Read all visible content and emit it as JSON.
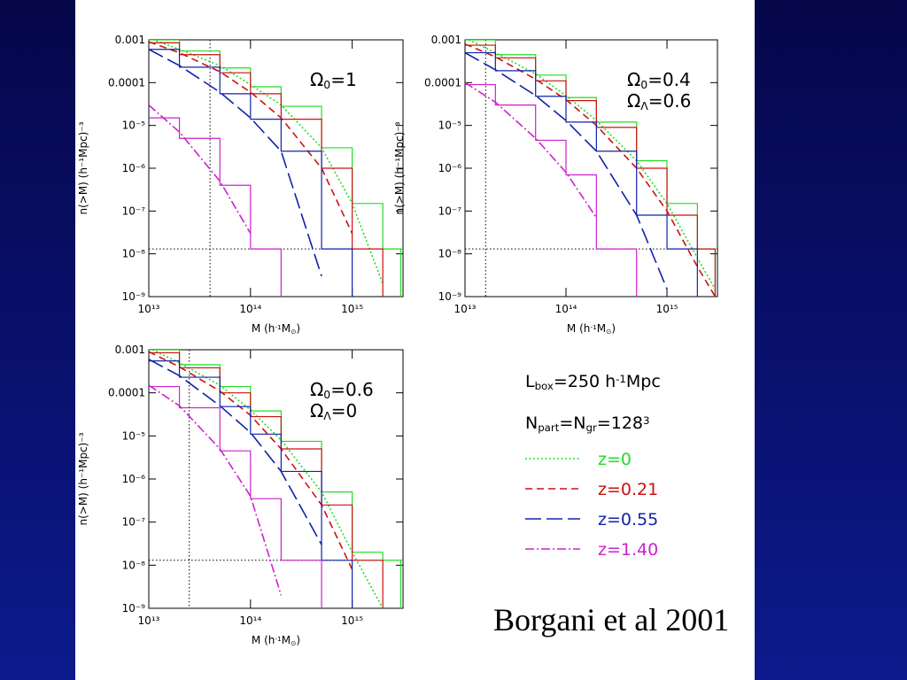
{
  "chart_data": [
    {
      "type": "line",
      "xscale": "log",
      "yscale": "log",
      "ylabel": "n(>M) (h⁻¹Mpc)⁻³",
      "xlabel": [
        {
          "text": "M (h"
        },
        {
          "text": "-1",
          "pos": "sup"
        },
        {
          "text": "M"
        },
        {
          "text": "⊙",
          "pos": "sub"
        },
        {
          "text": ")"
        }
      ],
      "annotations": [
        [
          {
            "text": "Ω"
          },
          {
            "text": "0",
            "pos": "sub"
          },
          {
            "text": "=1"
          }
        ]
      ],
      "xlim": [
        10000000000000.0,
        3160000000000000.0
      ],
      "ylim": [
        1e-09,
        0.001
      ],
      "xticks": [
        {
          "value": 10000000000000.0,
          "label": "10¹³"
        },
        {
          "value": 100000000000000.0,
          "label": "10¹⁴"
        },
        {
          "value": 1000000000000000.0,
          "label": "10¹⁵"
        }
      ],
      "yticks": [
        0.001,
        0.0001,
        {
          "value": 1e-05,
          "label": "10⁻⁵"
        },
        {
          "value": 1e-06,
          "label": "10⁻⁶"
        },
        {
          "value": 1e-07,
          "label": "10⁻⁷"
        },
        {
          "value": 1e-08,
          "label": "10⁻⁸"
        },
        {
          "value": 1e-09,
          "label": "10⁻⁹"
        }
      ],
      "hline": 1.3e-08,
      "vline": 40000000000000.0,
      "x": [
        10000000000000.0,
        20000000000000.0,
        50000000000000.0,
        100000000000000.0,
        200000000000000.0,
        500000000000000.0,
        1000000000000000.0,
        2000000000000000.0,
        3000000000000000.0
      ],
      "series": [
        {
          "values": [
            0.0011,
            0.0006,
            0.00025,
            9e-05,
            3e-05,
            3e-06,
            1.5e-07,
            2e-09,
            null
          ],
          "hist_values": [
            0.001,
            0.00055,
            0.00022,
            8e-05,
            2.8e-05,
            3e-06,
            1.5e-07,
            1.3e-08,
            null
          ]
        },
        {
          "values": [
            0.0009,
            0.0005,
            0.00018,
            6e-05,
            1.5e-05,
            1e-06,
            3e-08,
            null,
            null
          ],
          "hist_values": [
            0.00085,
            0.00045,
            0.00017,
            5.5e-05,
            1.4e-05,
            1e-06,
            1.3e-08,
            null,
            null
          ]
        },
        {
          "values": [
            0.0006,
            0.00025,
            6e-05,
            1.5e-05,
            2.5e-06,
            3e-09,
            null,
            null,
            null
          ],
          "hist_values": [
            0.0006,
            0.00023,
            5.5e-05,
            1.4e-05,
            2.5e-06,
            1.3e-08,
            null,
            null,
            null
          ]
        },
        {
          "values": [
            3e-05,
            7e-06,
            5e-07,
            3e-08,
            null,
            null,
            null,
            null,
            null
          ],
          "hist_values": [
            1.5e-05,
            5e-06,
            4e-07,
            1.3e-08,
            null,
            null,
            null,
            null,
            null
          ]
        }
      ]
    },
    {
      "type": "line",
      "xscale": "log",
      "yscale": "log",
      "ylabel": "n(>M) (h⁻¹Mpc)⁻³",
      "xlabel": [
        {
          "text": "M (h"
        },
        {
          "text": "-1",
          "pos": "sup"
        },
        {
          "text": "M"
        },
        {
          "text": "⊙",
          "pos": "sub"
        },
        {
          "text": ")"
        }
      ],
      "annotations": [
        [
          {
            "text": "Ω"
          },
          {
            "text": "0",
            "pos": "sub"
          },
          {
            "text": "=0.4"
          }
        ],
        [
          {
            "text": "Ω"
          },
          {
            "text": "Λ",
            "pos": "sub"
          },
          {
            "text": "=0.6"
          }
        ]
      ],
      "xlim": [
        10000000000000.0,
        3160000000000000.0
      ],
      "ylim": [
        1e-09,
        0.001
      ],
      "xticks": [
        {
          "value": 10000000000000.0,
          "label": "10¹³"
        },
        {
          "value": 100000000000000.0,
          "label": "10¹⁴"
        },
        {
          "value": 1000000000000000.0,
          "label": "10¹⁵"
        }
      ],
      "yticks": [
        0.001,
        0.0001,
        {
          "value": 1e-05,
          "label": "10⁻⁵"
        },
        {
          "value": 1e-06,
          "label": "10⁻⁶"
        },
        {
          "value": 1e-07,
          "label": "10⁻⁷"
        },
        {
          "value": 1e-08,
          "label": "10⁻⁸"
        },
        {
          "value": 1e-09,
          "label": "10⁻⁹"
        }
      ],
      "hline": 1.3e-08,
      "vline": 16000000000000.0,
      "x": [
        10000000000000.0,
        20000000000000.0,
        50000000000000.0,
        100000000000000.0,
        200000000000000.0,
        500000000000000.0,
        1000000000000000.0,
        2000000000000000.0,
        3000000000000000.0
      ],
      "series": [
        {
          "values": [
            0.0011,
            0.0005,
            0.00016,
            5e-05,
            1.3e-05,
            1.5e-06,
            1.5e-07,
            8e-09,
            1.5e-09
          ],
          "hist_values": [
            0.001,
            0.00045,
            0.00015,
            4.5e-05,
            1.2e-05,
            1.5e-06,
            1.5e-07,
            1.3e-08,
            null
          ]
        },
        {
          "values": [
            0.0008,
            0.0004,
            0.00012,
            4e-05,
            1e-05,
            1e-06,
            1e-07,
            5e-09,
            1e-09
          ],
          "hist_values": [
            0.00075,
            0.00038,
            0.00011,
            3.8e-05,
            9e-06,
            1e-06,
            8e-08,
            1.3e-08,
            null
          ]
        },
        {
          "values": [
            0.0005,
            0.0002,
            5e-05,
            1.3e-05,
            2.5e-06,
            8e-08,
            1.5e-09,
            null,
            null
          ],
          "hist_values": [
            0.0005,
            0.00019,
            4.8e-05,
            1.2e-05,
            2.5e-06,
            8e-08,
            1.3e-08,
            null,
            null
          ]
        },
        {
          "values": [
            0.0001,
            3.5e-05,
            5e-06,
            8e-07,
            7e-08,
            null,
            null,
            null,
            null
          ],
          "hist_values": [
            9e-05,
            3e-05,
            4.5e-06,
            7e-07,
            1.3e-08,
            null,
            null,
            null,
            null
          ]
        }
      ]
    },
    {
      "type": "line",
      "xscale": "log",
      "yscale": "log",
      "ylabel": "n(>M) (h⁻¹Mpc)⁻³",
      "xlabel": [
        {
          "text": "M (h"
        },
        {
          "text": "-1",
          "pos": "sup"
        },
        {
          "text": "M"
        },
        {
          "text": "⊙",
          "pos": "sub"
        },
        {
          "text": ")"
        }
      ],
      "annotations": [
        [
          {
            "text": "Ω"
          },
          {
            "text": "0",
            "pos": "sub"
          },
          {
            "text": "=0.6"
          }
        ],
        [
          {
            "text": "Ω"
          },
          {
            "text": "Λ",
            "pos": "sub"
          },
          {
            "text": "=0"
          }
        ]
      ],
      "xlim": [
        10000000000000.0,
        3160000000000000.0
      ],
      "ylim": [
        1e-09,
        0.001
      ],
      "xticks": [
        {
          "value": 10000000000000.0,
          "label": "10¹³"
        },
        {
          "value": 100000000000000.0,
          "label": "10¹⁴"
        },
        {
          "value": 1000000000000000.0,
          "label": "10¹⁵"
        }
      ],
      "yticks": [
        0.001,
        0.0001,
        {
          "value": 1e-05,
          "label": "10⁻⁵"
        },
        {
          "value": 1e-06,
          "label": "10⁻⁶"
        },
        {
          "value": 1e-07,
          "label": "10⁻⁷"
        },
        {
          "value": 1e-08,
          "label": "10⁻⁸"
        },
        {
          "value": 1e-09,
          "label": "10⁻⁹"
        }
      ],
      "hline": 1.3e-08,
      "vline": 25000000000000.0,
      "x": [
        10000000000000.0,
        20000000000000.0,
        50000000000000.0,
        100000000000000.0,
        200000000000000.0,
        500000000000000.0,
        1000000000000000.0,
        2000000000000000.0,
        3000000000000000.0
      ],
      "series": [
        {
          "values": [
            0.0011,
            0.0005,
            0.00015,
            4e-05,
            8e-06,
            5e-07,
            2e-08,
            1e-09,
            null
          ],
          "hist_values": [
            0.001,
            0.00045,
            0.00014,
            3.8e-05,
            7.5e-06,
            5e-07,
            2e-08,
            1.3e-08,
            null
          ]
        },
        {
          "values": [
            0.0009,
            0.0004,
            0.00011,
            3e-05,
            5e-06,
            2.5e-07,
            8e-09,
            null,
            null
          ],
          "hist_values": [
            0.00085,
            0.00038,
            0.0001,
            2.8e-05,
            5e-06,
            2.5e-07,
            1.3e-08,
            null,
            null
          ]
        },
        {
          "values": [
            0.0006,
            0.00025,
            5e-05,
            1.2e-05,
            1.5e-06,
            3e-08,
            null,
            null,
            null
          ],
          "hist_values": [
            0.00055,
            0.00023,
            4.8e-05,
            1.1e-05,
            1.5e-06,
            1.3e-08,
            null,
            null,
            null
          ]
        },
        {
          "values": [
            0.00015,
            5e-05,
            5e-06,
            4e-07,
            2e-09,
            null,
            null,
            null,
            null
          ],
          "hist_values": [
            0.00014,
            4.5e-05,
            4.5e-06,
            3.5e-07,
            1.3e-08,
            null,
            null,
            null,
            null
          ]
        }
      ]
    }
  ],
  "legend": {
    "info": [
      [
        {
          "text": "L"
        },
        {
          "text": "box",
          "pos": "sub"
        },
        {
          "text": "=250  h"
        },
        {
          "text": "-1",
          "pos": "sup"
        },
        {
          "text": "Mpc"
        }
      ],
      [
        {
          "text": "N"
        },
        {
          "text": "part",
          "pos": "sub"
        },
        {
          "text": "=N"
        },
        {
          "text": "gr",
          "pos": "sub"
        },
        {
          "text": "=128"
        },
        {
          "text": "3",
          "pos": "sup"
        }
      ]
    ],
    "entries": [
      {
        "name": "z=0",
        "color": "#22dd22",
        "dash": "dotted"
      },
      {
        "name": "z=0.21",
        "color": "#cc1111",
        "dash": "dashed"
      },
      {
        "name": "z=0.55",
        "color": "#1122aa",
        "dash": "longdash"
      },
      {
        "name": "z=1.40",
        "color": "#cc22cc",
        "dash": "dashdot"
      }
    ]
  },
  "caption": "Borgani et al 2001"
}
